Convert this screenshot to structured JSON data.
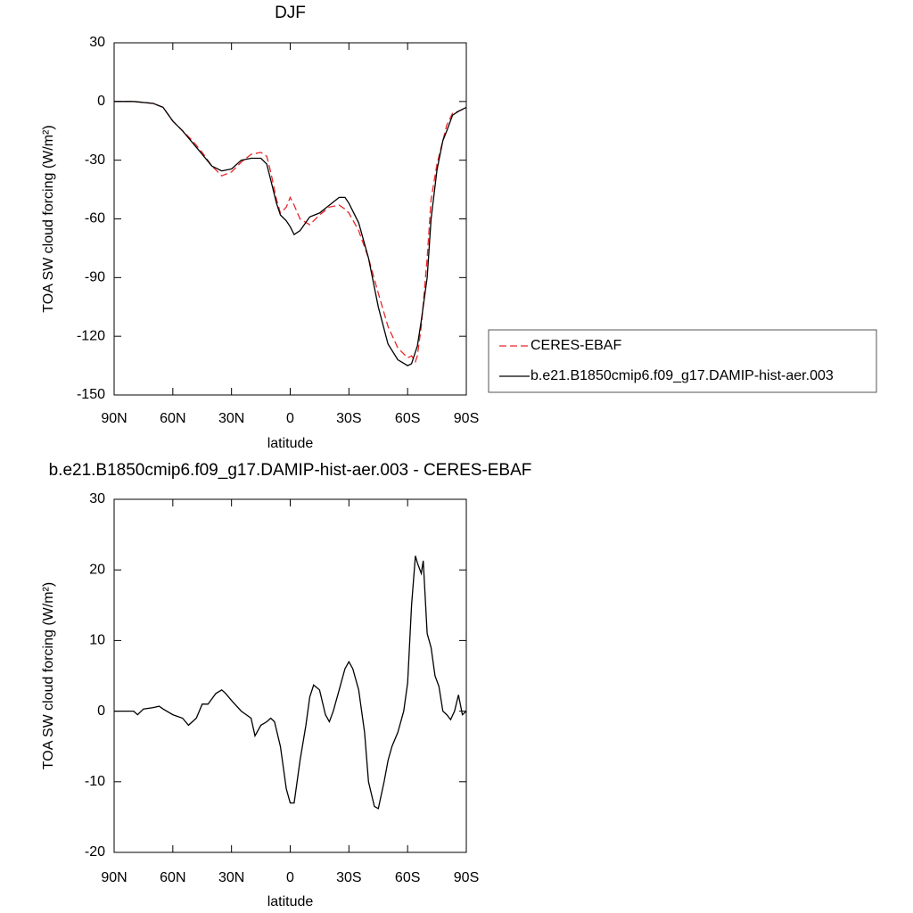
{
  "chart_data": [
    {
      "type": "line",
      "title": "DJF",
      "xlabel": "latitude",
      "ylabel": "TOA SW cloud forcing (W/m²)",
      "xlim": [
        90,
        -90
      ],
      "xticks": [
        {
          "value": 90,
          "label": "90N"
        },
        {
          "value": 60,
          "label": "60N"
        },
        {
          "value": 30,
          "label": "30N"
        },
        0,
        {
          "value": -30,
          "label": "30S"
        },
        {
          "value": -60,
          "label": "60S"
        },
        {
          "value": -90,
          "label": "90S"
        }
      ],
      "ylim": [
        -150,
        30
      ],
      "yticks": [
        -150,
        -120,
        -90,
        -60,
        -30,
        0,
        30
      ],
      "legend": "right",
      "x": [
        90,
        80,
        70,
        65,
        60,
        55,
        50,
        45,
        40,
        35,
        30,
        25,
        20,
        15,
        12,
        10,
        7,
        5,
        2,
        0,
        -2,
        -5,
        -10,
        -15,
        -20,
        -25,
        -28,
        -30,
        -35,
        -40,
        -45,
        -50,
        -55,
        -60,
        -62,
        -64,
        -65,
        -67,
        -70,
        -72,
        -75,
        -78,
        -80,
        -83,
        -86,
        -90
      ],
      "series": [
        {
          "name": "CERES-EBAF",
          "color": "#e8272a",
          "style": "dashed",
          "values": [
            0,
            0,
            -1,
            -3,
            -10,
            -15,
            -20,
            -26,
            -33,
            -38,
            -36,
            -31,
            -27,
            -26,
            -28,
            -36,
            -50,
            -57,
            -54,
            -49,
            -53,
            -60,
            -63,
            -58,
            -54,
            -53,
            -55,
            -57,
            -66,
            -80,
            -98,
            -115,
            -126,
            -131,
            -130,
            -133,
            -130,
            -115,
            -80,
            -50,
            -32,
            -20,
            -12,
            -6,
            -5,
            -3
          ]
        },
        {
          "name": "b.e21.B1850cmip6.f09_g17.DAMIP-hist-aer.003",
          "color": "#000000",
          "style": "solid",
          "values": [
            0,
            0,
            -1,
            -3,
            -10,
            -15,
            -21,
            -27,
            -33,
            -35.5,
            -34.5,
            -30,
            -29,
            -29,
            -32,
            -40,
            -52,
            -58,
            -61,
            -64,
            -68,
            -66,
            -59,
            -57,
            -53,
            -49,
            -49,
            -52,
            -62,
            -80,
            -105,
            -124,
            -132,
            -135,
            -134,
            -128,
            -125,
            -112,
            -90,
            -60,
            -35,
            -20,
            -15,
            -7,
            -5,
            -3
          ]
        }
      ]
    },
    {
      "type": "line",
      "title": "b.e21.B1850cmip6.f09_g17.DAMIP-hist-aer.003 - CERES-EBAF",
      "xlabel": "latitude",
      "ylabel": "TOA SW cloud forcing (W/m²)",
      "xlim": [
        90,
        -90
      ],
      "xticks": [
        {
          "value": 90,
          "label": "90N"
        },
        {
          "value": 60,
          "label": "60N"
        },
        {
          "value": 30,
          "label": "30N"
        },
        0,
        {
          "value": -30,
          "label": "30S"
        },
        {
          "value": -60,
          "label": "60S"
        },
        {
          "value": -90,
          "label": "90S"
        }
      ],
      "ylim": [
        -20,
        30
      ],
      "yticks": [
        -20,
        -10,
        0,
        10,
        20,
        30
      ],
      "x": [
        90,
        80,
        78,
        75,
        70,
        67,
        65,
        60,
        55,
        52,
        48,
        45,
        42,
        38,
        35,
        33,
        30,
        25,
        20,
        18,
        15,
        12,
        10,
        8,
        5,
        2,
        0,
        -2,
        -5,
        -8,
        -10,
        -12,
        -15,
        -18,
        -20,
        -22,
        -25,
        -28,
        -30,
        -32,
        -35,
        -38,
        -40,
        -43,
        -45,
        -48,
        -50,
        -52,
        -55,
        -58,
        -60,
        -62,
        -64,
        -65,
        -67,
        -68,
        -70,
        -72,
        -74,
        -76,
        -78,
        -80,
        -82,
        -84,
        -86,
        -88,
        -90
      ],
      "series": [
        {
          "color": "#000000",
          "style": "solid",
          "values": [
            0,
            0,
            -0.5,
            0.3,
            0.5,
            0.7,
            0.3,
            -0.5,
            -1,
            -2,
            -1,
            1,
            1,
            2.5,
            3,
            2.5,
            1.5,
            0,
            -1,
            -3.5,
            -2,
            -1.5,
            -1,
            -1.5,
            -5,
            -11,
            -13,
            -13,
            -7,
            -2,
            2,
            3.7,
            3,
            -0.5,
            -1.5,
            0,
            3,
            6,
            7,
            6,
            3,
            -3,
            -10,
            -13.5,
            -13.8,
            -10,
            -7,
            -5,
            -3,
            0,
            4,
            15,
            22,
            21,
            19.5,
            21.3,
            11,
            9,
            5,
            3.5,
            0,
            -0.5,
            -1.2,
            0,
            2.3,
            -0.5,
            0
          ]
        }
      ]
    }
  ]
}
